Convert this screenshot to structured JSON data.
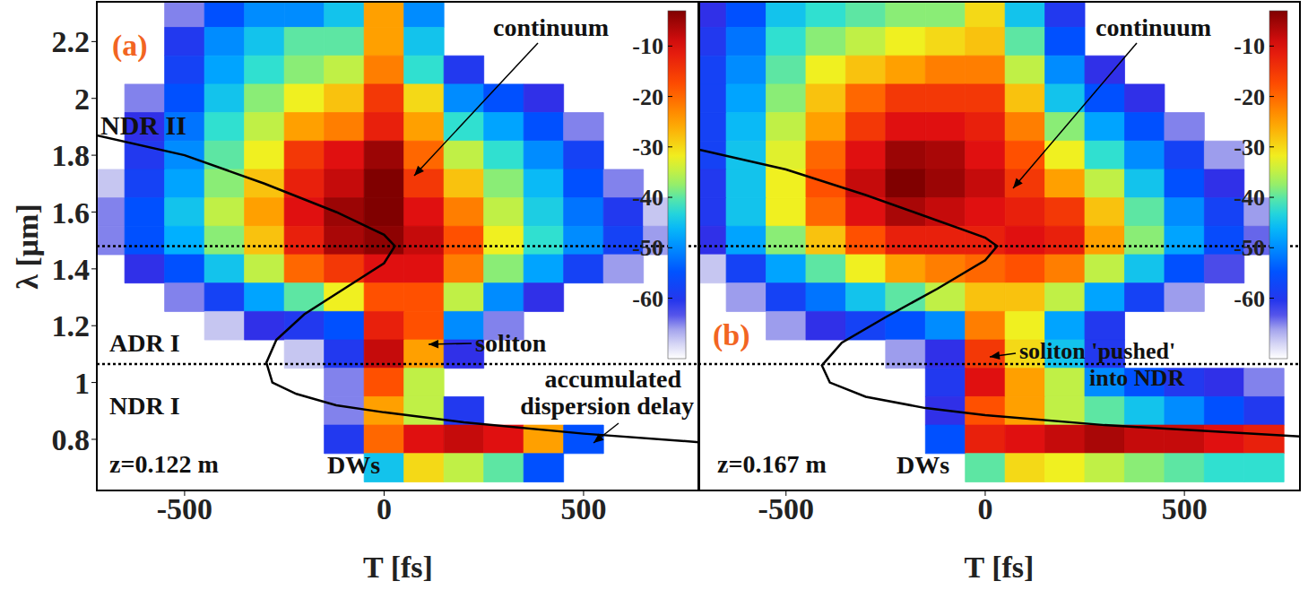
{
  "chart_data": [
    {
      "type": "heatmap",
      "title": "(a)",
      "x_label": "T [fs]",
      "y_label": "λ [μm]",
      "xlim": [
        -720,
        790
      ],
      "ylim": [
        0.62,
        2.34
      ],
      "xticks": [
        -500,
        0,
        500
      ],
      "yticks": [
        0.8,
        1,
        1.2,
        1.4,
        1.6,
        1.8,
        2,
        2.2
      ],
      "heatmap": {
        "x": [
          -700,
          -600,
          -500,
          -400,
          -300,
          -200,
          -100,
          0,
          100,
          200,
          300,
          400,
          500,
          600,
          700
        ],
        "y": [
          2.3,
          2.2,
          2.1,
          2.0,
          1.9,
          1.8,
          1.7,
          1.6,
          1.5,
          1.4,
          1.3,
          1.2,
          1.1,
          1.0,
          0.9,
          0.8,
          0.7
        ],
        "cells": [
          [
            null,
            null,
            -65,
            -55,
            -50,
            -50,
            -45,
            -25,
            -50,
            null,
            null,
            null,
            null,
            null,
            null
          ],
          [
            null,
            null,
            -60,
            -50,
            -45,
            -40,
            -40,
            -25,
            -45,
            null,
            null,
            null,
            null,
            null,
            null
          ],
          [
            null,
            null,
            -58,
            -48,
            -42,
            -38,
            -35,
            -22,
            -42,
            -60,
            null,
            null,
            null,
            null,
            null
          ],
          [
            null,
            -65,
            -55,
            -45,
            -38,
            -32,
            -28,
            -15,
            -30,
            -50,
            -55,
            -62,
            null,
            null,
            null
          ],
          [
            null,
            -62,
            -52,
            -42,
            -35,
            -25,
            -22,
            -12,
            -25,
            -42,
            -48,
            -55,
            -65,
            null,
            null
          ],
          [
            null,
            -60,
            -50,
            -40,
            -32,
            -15,
            -10,
            -5,
            -20,
            -35,
            -42,
            -50,
            -58,
            null,
            null
          ],
          [
            -68,
            -58,
            -48,
            -38,
            -28,
            -12,
            -8,
            -3,
            -15,
            -28,
            -38,
            -46,
            -55,
            -65,
            null
          ],
          [
            -65,
            -55,
            -45,
            -35,
            -25,
            -10,
            -5,
            -3,
            -10,
            -22,
            -35,
            -44,
            -52,
            -60,
            -68
          ],
          [
            -65,
            -55,
            -47,
            -38,
            -28,
            -12,
            -6,
            -4,
            -8,
            -18,
            -32,
            -42,
            -50,
            -58,
            -66
          ],
          [
            null,
            -62,
            -55,
            -45,
            -35,
            -20,
            -15,
            -10,
            -10,
            -22,
            -38,
            -48,
            -58,
            -66,
            null
          ],
          [
            null,
            null,
            -65,
            -58,
            -48,
            -40,
            -32,
            -18,
            -18,
            -35,
            -50,
            -62,
            null,
            null,
            null
          ],
          [
            null,
            null,
            null,
            -68,
            -62,
            -60,
            -55,
            -12,
            -18,
            -50,
            -65,
            null,
            null,
            null,
            null
          ],
          [
            null,
            null,
            null,
            null,
            null,
            -68,
            -60,
            -8,
            -25,
            -62,
            null,
            null,
            null,
            null,
            null
          ],
          [
            null,
            null,
            null,
            null,
            null,
            null,
            -65,
            -18,
            -35,
            null,
            null,
            null,
            null,
            null,
            null
          ],
          [
            null,
            null,
            null,
            null,
            null,
            null,
            -65,
            -25,
            -35,
            -60,
            null,
            null,
            null,
            null,
            null
          ],
          [
            null,
            null,
            null,
            null,
            null,
            null,
            -60,
            -20,
            -10,
            -8,
            -10,
            -25,
            -55,
            null,
            null
          ],
          [
            null,
            null,
            null,
            null,
            null,
            null,
            null,
            -45,
            -30,
            -35,
            -40,
            -55,
            null,
            null,
            null
          ]
        ]
      },
      "colorbar": {
        "range": [
          -72,
          -3
        ],
        "ticks": [
          -10,
          -20,
          -30,
          -40,
          -50,
          -60
        ]
      },
      "series": [
        {
          "type": "line",
          "color": "#000000",
          "x": [
            -720,
            -500,
            -300,
            -120,
            0,
            27,
            0,
            -100,
            -200,
            -270,
            -295,
            -280,
            -220,
            -120,
            0,
            200,
            500,
            790
          ],
          "values": [
            1.87,
            1.8,
            1.7,
            1.6,
            1.52,
            1.48,
            1.42,
            1.33,
            1.24,
            1.15,
            1.07,
            1.0,
            0.96,
            0.92,
            0.895,
            0.86,
            0.82,
            0.79
          ]
        }
      ],
      "hlines": [
        1.48,
        1.065
      ],
      "annotations": [
        "continuum",
        "soliton",
        "accumulated dispersion delay",
        "NDR II",
        "ADR I",
        "NDR I",
        "z=0.122 m",
        "DWs"
      ]
    },
    {
      "type": "heatmap",
      "title": "(b)",
      "x_label": "T [fs]",
      "tick_labels": "x",
      "xlim": [
        -720,
        790
      ],
      "ylim": [
        0.62,
        2.34
      ],
      "xticks": [
        -500,
        0,
        500
      ],
      "yticks": [
        0.8,
        1,
        1.2,
        1.4,
        1.6,
        1.8,
        2,
        2.2
      ],
      "heatmap": {
        "x": [
          -700,
          -600,
          -500,
          -400,
          -300,
          -200,
          -100,
          0,
          100,
          200,
          300,
          400,
          500,
          600,
          700
        ],
        "y": [
          2.3,
          2.2,
          2.1,
          2.0,
          1.9,
          1.8,
          1.7,
          1.6,
          1.5,
          1.4,
          1.3,
          1.2,
          1.1,
          1.0,
          0.9,
          0.8,
          0.7
        ],
        "cells": [
          [
            -62,
            -55,
            -45,
            -42,
            -40,
            -38,
            -38,
            -30,
            -45,
            -60,
            null,
            null,
            null,
            null,
            null
          ],
          [
            -60,
            -52,
            -42,
            -38,
            -35,
            -32,
            -30,
            -28,
            -40,
            -55,
            null,
            null,
            null,
            null,
            null
          ],
          [
            -58,
            -50,
            -40,
            -32,
            -28,
            -25,
            -22,
            -22,
            -35,
            -50,
            -62,
            null,
            null,
            null,
            null
          ],
          [
            -58,
            -48,
            -38,
            -28,
            -20,
            -15,
            -15,
            -15,
            -28,
            -45,
            -55,
            -62,
            null,
            null,
            null
          ],
          [
            -58,
            -46,
            -35,
            -25,
            -15,
            -10,
            -10,
            -12,
            -22,
            -38,
            -48,
            -55,
            -65,
            null,
            null
          ],
          [
            -58,
            -45,
            -33,
            -20,
            -10,
            -5,
            -6,
            -10,
            -18,
            -32,
            -42,
            -50,
            -58,
            -66,
            null
          ],
          [
            -60,
            -45,
            -32,
            -18,
            -8,
            -3,
            -5,
            -8,
            -15,
            -25,
            -35,
            -45,
            -55,
            -62,
            null
          ],
          [
            -60,
            -45,
            -32,
            -20,
            -10,
            -6,
            -8,
            -10,
            -12,
            -15,
            -28,
            -40,
            -50,
            -58,
            -66
          ],
          [
            -62,
            -48,
            -38,
            -28,
            -18,
            -12,
            -12,
            -12,
            -10,
            -12,
            -25,
            -38,
            -48,
            -56,
            -64
          ],
          [
            -68,
            -58,
            -48,
            -40,
            -32,
            -25,
            -22,
            -20,
            -18,
            -22,
            -35,
            -45,
            -55,
            -63,
            null
          ],
          [
            null,
            -66,
            -58,
            -52,
            -45,
            -40,
            -35,
            -28,
            -28,
            -35,
            -48,
            -58,
            -66,
            null,
            null
          ],
          [
            null,
            null,
            -66,
            -62,
            -58,
            -55,
            -50,
            -22,
            -32,
            -48,
            -60,
            null,
            null,
            null,
            null
          ],
          [
            null,
            null,
            null,
            null,
            null,
            -66,
            -62,
            -15,
            -30,
            -45,
            -60,
            null,
            null,
            null,
            null
          ],
          [
            null,
            null,
            null,
            null,
            null,
            null,
            -60,
            -10,
            -25,
            -35,
            -50,
            -55,
            -60,
            -62,
            -65
          ],
          [
            null,
            null,
            null,
            null,
            null,
            null,
            -62,
            -18,
            -25,
            -35,
            -40,
            -45,
            -50,
            -55,
            -60
          ],
          [
            null,
            null,
            null,
            null,
            null,
            null,
            -55,
            -12,
            -10,
            -8,
            -6,
            -8,
            -8,
            -10,
            -12
          ],
          [
            null,
            null,
            null,
            null,
            null,
            null,
            null,
            -40,
            -30,
            -32,
            -35,
            -38,
            -40,
            -42,
            -42
          ]
        ]
      },
      "colorbar": {
        "range": [
          -72,
          -3
        ],
        "ticks": [
          -10,
          -20,
          -30,
          -40,
          -50,
          -60
        ]
      },
      "series": [
        {
          "type": "line",
          "color": "#000000",
          "x": [
            -720,
            -500,
            -300,
            -120,
            0,
            30,
            0,
            -120,
            -250,
            -360,
            -410,
            -390,
            -300,
            -150,
            0,
            300,
            790
          ],
          "values": [
            1.82,
            1.75,
            1.66,
            1.57,
            1.51,
            1.48,
            1.43,
            1.33,
            1.23,
            1.14,
            1.06,
            1.0,
            0.95,
            0.91,
            0.885,
            0.85,
            0.81
          ]
        }
      ],
      "hlines": [
        1.48,
        1.065
      ],
      "annotations": [
        "continuum",
        "soliton 'pushed' into NDR",
        "z=0.167 m",
        "DWs"
      ]
    }
  ]
}
